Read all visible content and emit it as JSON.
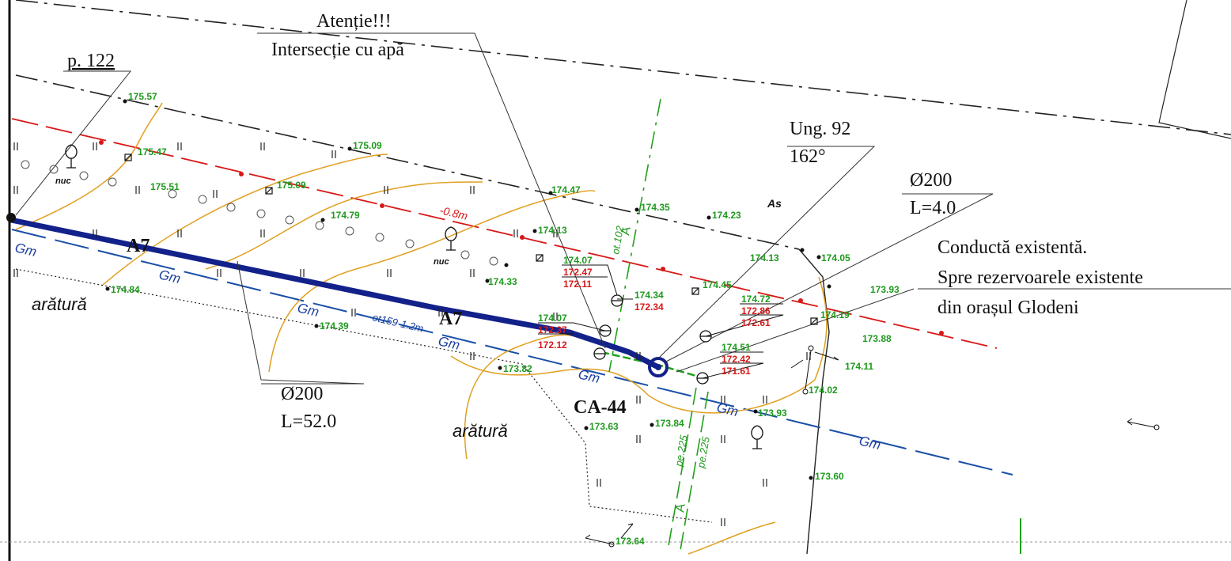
{
  "colors": {
    "pipe_new": "#13218a",
    "pipe_existing_gas": "#1a4fa8",
    "water_line": "#d81818",
    "contour": "#e0a020",
    "elevation_label": "#1f9a1f",
    "depth_label": "#d81818",
    "boundary": "#111111"
  },
  "callouts": {
    "warning_title": "Atenție!!!",
    "warning_text": "Intersecție cu apă",
    "point_label": "p. 122",
    "angle_title": "Ung. 92",
    "angle_value": "162°",
    "pipe_short_diameter": "Ø200",
    "pipe_short_length": "L=4.0",
    "pipe_long_diameter": "Ø200",
    "pipe_long_length": "L=52.0",
    "existing_line1": "Conductă existentă.",
    "existing_line2": "Spre rezervoarele existente",
    "existing_line3": "din orașul Glodeni"
  },
  "labels": {
    "pipe_a7_1": "A7",
    "pipe_a7_2": "A7",
    "manhole": "CA-44",
    "field_1": "arătură",
    "field_2": "arătură",
    "surface_as": "As",
    "tree_1": "nuc",
    "tree_2": "nuc",
    "gas_1": "Gm",
    "gas_2": "Gm",
    "gas_3": "Gm",
    "gas_4": "Gm",
    "gas_5": "Gm",
    "gas_6": "Gm",
    "gas_7": "Gm",
    "gas_note": "ot159-1.2m",
    "water_depth": "-0.8m",
    "axis_a_1": "A",
    "axis_a_2": "A",
    "axis_ot_1": "ot.102",
    "axis_pe_1": "pe.225",
    "axis_pe_2": "pe.225"
  },
  "elevations": {
    "e01": "175.57",
    "e02": "175.47",
    "e03": "175.09",
    "e04": "175.51",
    "e05": "175.09",
    "e06": "174.79",
    "e07": "174.47",
    "e08": "174.35",
    "e09": "174.23",
    "e10": "174.13",
    "e11": "174.13",
    "e12": "174.05",
    "e13": "173.93",
    "e14": "174.84",
    "e15": "174.33",
    "e16": "174.45",
    "e17": "174.19",
    "e18": "174.39",
    "e19": "173.88",
    "e20": "174.11",
    "e21": "173.82",
    "e22": "174.02",
    "e23": "173.93",
    "e24": "173.63",
    "e25": "173.84",
    "e26": "173.60",
    "e27": "173.64"
  },
  "well_tables": {
    "w1": [
      "174.07",
      "172.47",
      "172.11"
    ],
    "w2": [
      "174.34",
      "172.34"
    ],
    "w3": [
      "174.72",
      "172.86",
      "172.61"
    ],
    "w4": [
      "174.07",
      "172.37",
      "172.12"
    ],
    "w5": [
      "174.51",
      "172.42",
      "171.61"
    ]
  }
}
